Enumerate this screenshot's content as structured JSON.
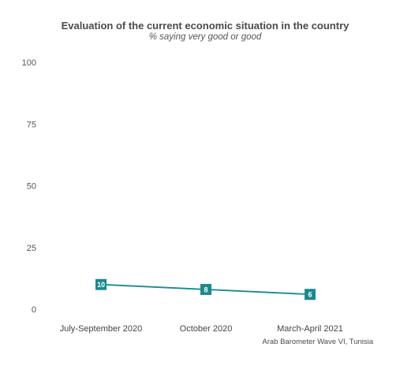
{
  "chart_data": {
    "type": "line",
    "title": "Evaluation of the current economic situation in the country",
    "subtitle": "% saying very good or good",
    "caption": "Arab Barometer Wave VI, Tunisia",
    "categories": [
      "July-September 2020",
      "October 2020",
      "March-April 2021"
    ],
    "series": [
      {
        "values": [
          10,
          8,
          6
        ],
        "color": "#1a8a8e"
      }
    ],
    "ylim": [
      0,
      100
    ],
    "yticks": [
      0,
      25,
      50,
      75,
      100
    ],
    "grid": false,
    "legend": "none"
  }
}
